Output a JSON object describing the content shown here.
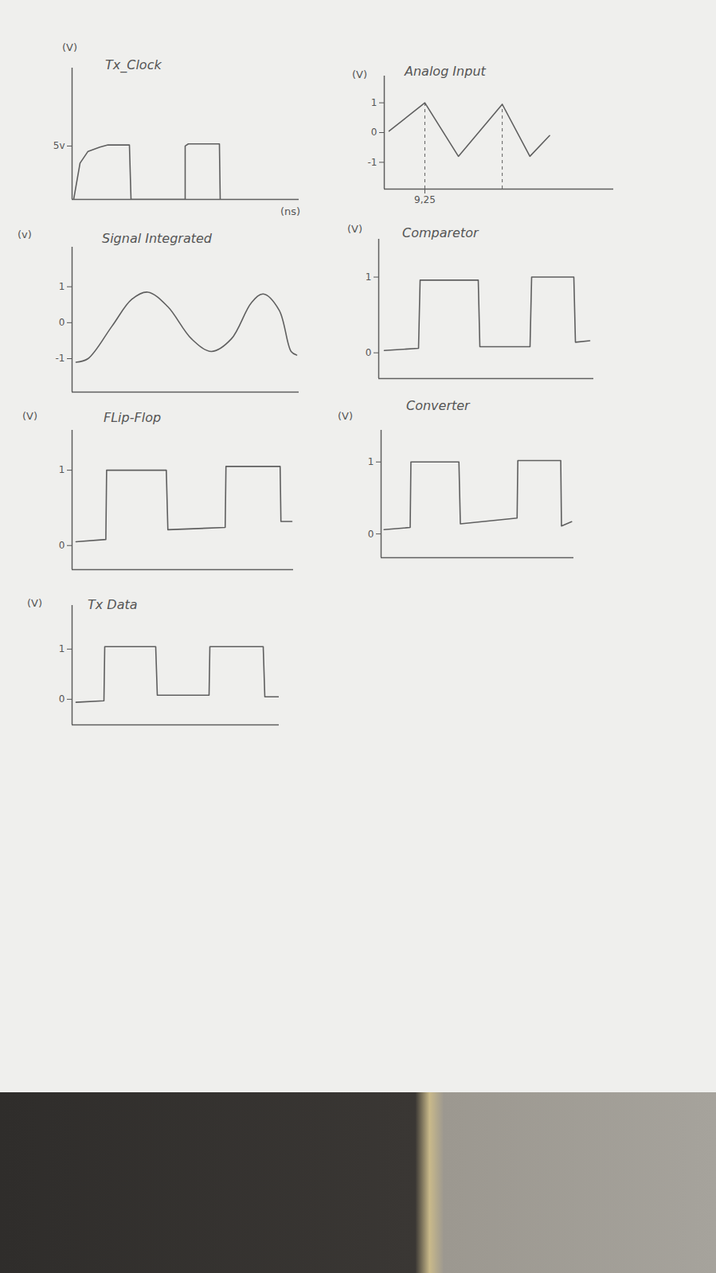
{
  "chart_data": [
    {
      "type": "line",
      "title": "Tx_Clock",
      "y_label": "(V)",
      "x_label": "(ns)",
      "color": "#5f5f5f",
      "line_style": "solid",
      "tick_labels": "y",
      "x": [
        0.2,
        1.0,
        2.0,
        3.5,
        4.5,
        7.2,
        7.4,
        14.2,
        14.2,
        14.6,
        18.5,
        18.6
      ],
      "values": [
        0,
        3.4,
        4.5,
        4.9,
        5.1,
        5.1,
        0,
        0,
        5.0,
        5.2,
        5.2,
        0
      ],
      "xlim": [
        0,
        28.5
      ],
      "ylim": [
        0,
        12.3
      ],
      "yticks": [
        {
          "value": 5,
          "label": "5v"
        }
      ]
    },
    {
      "type": "line",
      "title": "Analog Input",
      "y_label": "(V)",
      "color": "#5f5f5f",
      "line_style": "solid",
      "tick_labels": true,
      "x": [
        1.1,
        9.25,
        16.9,
        26.9,
        33.2,
        37.7
      ],
      "values": [
        0.05,
        1.0,
        -0.8,
        0.95,
        -0.8,
        -0.1
      ],
      "xlim": [
        0,
        52.3
      ],
      "ylim": [
        -1.9,
        1.9
      ],
      "xticks": [
        {
          "value": 9.25,
          "label": "9,25"
        }
      ],
      "yticks": [
        1,
        0,
        -1
      ]
    },
    {
      "type": "line",
      "title": "Signal Integrated",
      "y_label": "(v)",
      "color": "#5f5f5f",
      "line_style": "curved",
      "tick_labels": "y",
      "x": [
        0.5,
        2,
        5,
        7.5,
        9.5,
        12,
        15,
        17.5,
        20,
        22.5,
        24,
        26,
        27.5,
        28.2
      ],
      "values": [
        -1.1,
        -1.0,
        -0.1,
        0.65,
        0.85,
        0.45,
        -0.45,
        -0.8,
        -0.45,
        0.55,
        0.8,
        0.35,
        -0.8,
        -0.9
      ],
      "xlim": [
        0,
        28.5
      ],
      "ylim": [
        -1.93,
        2.1
      ],
      "yticks": [
        1,
        0,
        -1
      ]
    },
    {
      "type": "line",
      "title": "Comparetor",
      "y_label": "(V)",
      "color": "#5f5f5f",
      "line_style": "solid",
      "tick_labels": "y",
      "x": [
        0.7,
        5,
        5.2,
        12.5,
        12.7,
        19,
        19.2,
        24.5,
        24.7,
        26.5
      ],
      "values": [
        0.03,
        0.06,
        0.96,
        0.96,
        0.08,
        0.08,
        1.0,
        1.0,
        0.14,
        0.16
      ],
      "xlim": [
        0,
        27
      ],
      "ylim": [
        -0.34,
        1.5
      ],
      "yticks": [
        1,
        0
      ]
    },
    {
      "type": "line",
      "title": "FLip-Flop",
      "y_label": "(V)",
      "color": "#5f5f5f",
      "line_style": "solid",
      "tick_labels": "y",
      "x": [
        0.5,
        4.3,
        4.4,
        12,
        12.2,
        19.5,
        19.6,
        26.5,
        26.6,
        28
      ],
      "values": [
        0.05,
        0.08,
        1.0,
        1.0,
        0.21,
        0.24,
        1.05,
        1.05,
        0.32,
        0.32
      ],
      "xlim": [
        0,
        28.2
      ],
      "ylim": [
        -0.32,
        1.53
      ],
      "yticks": [
        1,
        0
      ]
    },
    {
      "type": "line",
      "title": "Converter",
      "y_label": "(V)",
      "color": "#5f5f5f",
      "line_style": "solid",
      "tick_labels": "y",
      "x": [
        0.4,
        4,
        4.1,
        10.7,
        10.9,
        18.7,
        18.8,
        24.7,
        24.8,
        26.2
      ],
      "values": [
        0.06,
        0.09,
        1.0,
        1.0,
        0.14,
        0.22,
        1.02,
        1.02,
        0.11,
        0.17
      ],
      "xlim": [
        0,
        26.5
      ],
      "ylim": [
        -0.33,
        1.44
      ],
      "yticks": [
        1,
        0
      ]
    },
    {
      "type": "line",
      "title": "Tx Data",
      "y_label": "(V)",
      "color": "#5f5f5f",
      "line_style": "solid",
      "tick_labels": "y",
      "x": [
        0.5,
        4,
        4.1,
        10.5,
        10.7,
        17.2,
        17.3,
        24,
        24.2,
        26
      ],
      "values": [
        -0.06,
        -0.03,
        1.05,
        1.05,
        0.08,
        0.08,
        1.05,
        1.05,
        0.05,
        0.05
      ],
      "xlim": [
        0,
        26
      ],
      "ylim": [
        -0.51,
        1.87
      ],
      "yticks": [
        1,
        0
      ]
    }
  ]
}
